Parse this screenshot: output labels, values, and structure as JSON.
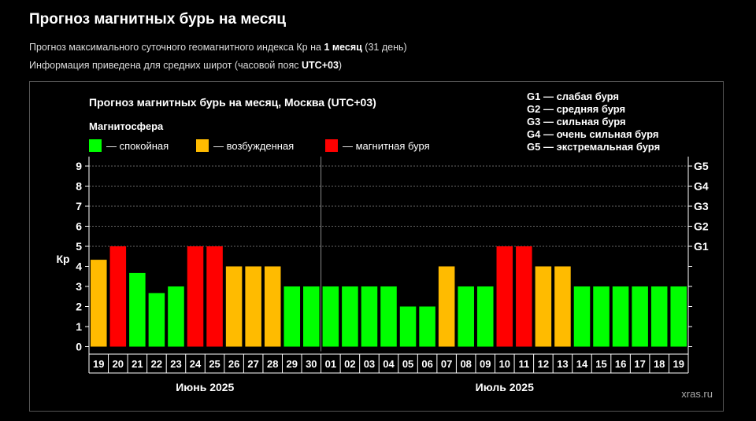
{
  "page": {
    "title": "Прогноз магнитных бурь на месяц",
    "line1_before": "Прогноз максимального суточного геомагнитного индекса Кр на ",
    "line1_bold": "1 месяц",
    "line1_after": " (31 день)",
    "line2_before": "Информация приведена для средних широт (часовой пояс ",
    "line2_bold": "UTC+03",
    "line2_after": ")"
  },
  "chart_data": {
    "type": "bar",
    "title": "Прогноз магнитных бурь на месяц, Москва (UTC+03)",
    "legend_title": "Магнитосфера",
    "legend": [
      {
        "key": "calm",
        "label": "— спокойная",
        "color": "#00ff00"
      },
      {
        "key": "excited",
        "label": "— возбужденная",
        "color": "#ffbb00"
      },
      {
        "key": "storm",
        "label": "— магнитная буря",
        "color": "#ff0000"
      }
    ],
    "g_legend": [
      "G1 — слабая буря",
      "G2 — средняя буря",
      "G3 — сильная буря",
      "G4 — очень сильная буря",
      "G5 — экстремальная буря"
    ],
    "ylabel": "Кр",
    "ylim": [
      0,
      9
    ],
    "yticks": [
      "0",
      "1",
      "2",
      "3",
      "4",
      "5",
      "6",
      "7",
      "8",
      "9"
    ],
    "right_ticks": [
      {
        "value": 5,
        "label": "G1"
      },
      {
        "value": 6,
        "label": "G2"
      },
      {
        "value": 7,
        "label": "G3"
      },
      {
        "value": 8,
        "label": "G4"
      },
      {
        "value": 9,
        "label": "G5"
      }
    ],
    "categories": [
      "19",
      "20",
      "21",
      "22",
      "23",
      "24",
      "25",
      "26",
      "27",
      "28",
      "29",
      "30",
      "01",
      "02",
      "03",
      "04",
      "05",
      "06",
      "07",
      "08",
      "09",
      "10",
      "11",
      "12",
      "13",
      "14",
      "15",
      "16",
      "17",
      "18",
      "19"
    ],
    "values": [
      4.33,
      5,
      3.67,
      2.67,
      3,
      5,
      5,
      4,
      4,
      4,
      3,
      3,
      3,
      3,
      3,
      3,
      2,
      2,
      4,
      3,
      3,
      5,
      5,
      4,
      4,
      3,
      3,
      3,
      3,
      3,
      3
    ],
    "status": [
      "excited",
      "storm",
      "calm",
      "calm",
      "calm",
      "storm",
      "storm",
      "excited",
      "excited",
      "excited",
      "calm",
      "calm",
      "calm",
      "calm",
      "calm",
      "calm",
      "calm",
      "calm",
      "excited",
      "calm",
      "calm",
      "storm",
      "storm",
      "excited",
      "excited",
      "calm",
      "calm",
      "calm",
      "calm",
      "calm",
      "calm"
    ],
    "months": [
      {
        "label": "Июнь 2025",
        "start": 0,
        "end": 11
      },
      {
        "label": "Июль 2025",
        "start": 12,
        "end": 30
      }
    ],
    "grid": true,
    "watermark": "xras.ru"
  }
}
